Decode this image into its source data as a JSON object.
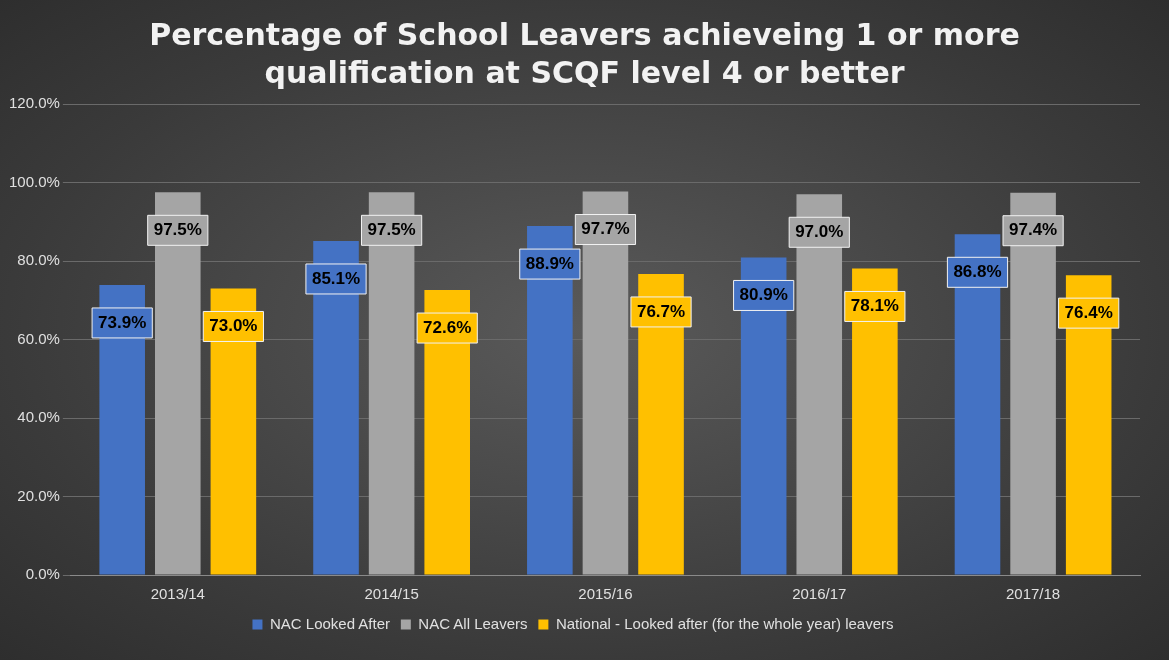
{
  "chart_data": {
    "type": "bar",
    "title": "Percentage of School Leavers achieveing 1 or more qualification at SCQF level 4 or better",
    "categories": [
      "2013/14",
      "2014/15",
      "2015/16",
      "2016/17",
      "2017/18"
    ],
    "series": [
      {
        "name": "NAC Looked After",
        "color": "#4472c4",
        "values": [
          73.9,
          85.1,
          88.9,
          80.9,
          86.8
        ],
        "value_labels": [
          "73.9%",
          "85.1%",
          "88.9%",
          "80.9%",
          "86.8%"
        ]
      },
      {
        "name": "NAC All Leavers",
        "color": "#a5a5a5",
        "values": [
          97.5,
          97.5,
          97.7,
          97.0,
          97.4
        ],
        "value_labels": [
          "97.5%",
          "97.5%",
          "97.7%",
          "97.0%",
          "97.4%"
        ]
      },
      {
        "name": "National - Looked after (for the whole year) leavers",
        "color": "#ffc000",
        "values": [
          73.0,
          72.6,
          76.7,
          78.1,
          76.4
        ],
        "value_labels": [
          "73.0%",
          "72.6%",
          "76.7%",
          "78.1%",
          "76.4%"
        ]
      }
    ],
    "ylim": [
      0,
      120
    ],
    "yticks": [
      {
        "value": 0,
        "label": "0.0%"
      },
      {
        "value": 20,
        "label": "20.0%"
      },
      {
        "value": 40,
        "label": "40.0%"
      },
      {
        "value": 60,
        "label": "60.0%"
      },
      {
        "value": 80,
        "label": "80.0%"
      },
      {
        "value": 100,
        "label": "100.0%"
      },
      {
        "value": 120,
        "label": "120.0%"
      }
    ],
    "grid": "y",
    "legend": "bottom"
  }
}
